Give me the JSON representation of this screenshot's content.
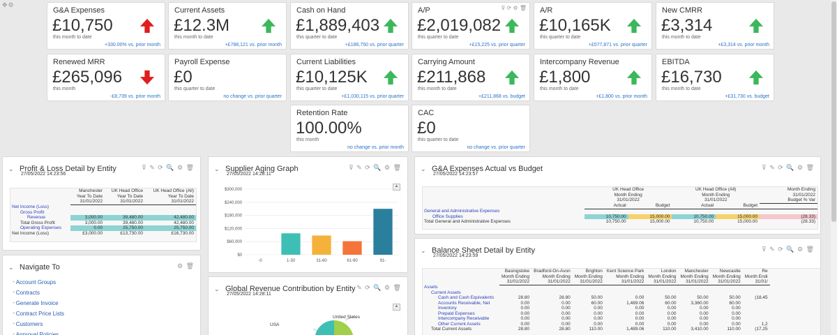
{
  "kpis": [
    {
      "title": "G&A Expenses",
      "value": "£10,750",
      "period": "this month to date",
      "change": "+330.00% vs. prior month",
      "trend": "up",
      "color": "#e01e1e"
    },
    {
      "title": "Current Assets",
      "value": "£12.3M",
      "period": "this month to date",
      "change": "+£788,121 vs. prior month",
      "trend": "up",
      "color": "#3bb85b"
    },
    {
      "title": "Cash on Hand",
      "value": "£1,889,403",
      "period": "this quarter to date",
      "change": "+£186,750 vs. prior quarter",
      "trend": "up",
      "color": "#3bb85b"
    },
    {
      "title": "A/P",
      "value": "£2,019,082",
      "period": "this quarter to date",
      "change": "+£15,225 vs. prior quarter",
      "trend": "up",
      "color": "#3bb85b",
      "actions": "⊽ ⟳ ⚙ 🗑"
    },
    {
      "title": "A/R",
      "value": "£10,165K",
      "period": "this quarter to date",
      "change": "+£577,871 vs. prior quarter",
      "trend": "up",
      "color": "#3bb85b"
    },
    {
      "title": "New CMRR",
      "value": "£3,314",
      "period": "this month to date",
      "change": "+£3,314 vs. prior month",
      "trend": "up",
      "color": "#3bb85b"
    },
    {
      "title": "Renewed MRR",
      "value": "£265,096",
      "period": "this month",
      "change": "-£8,739 vs. prior month",
      "trend": "down",
      "color": "#e01e1e"
    },
    {
      "title": "Payroll Expense",
      "value": "£0",
      "period": "this quarter to date",
      "change": "no change vs. prior quarter",
      "trend": "none",
      "color": ""
    },
    {
      "title": "Current Liabilities",
      "value": "£10,125K",
      "period": "this quarter to date",
      "change": "+£1,030,115 vs. prior quarter",
      "trend": "up",
      "color": "#3bb85b"
    },
    {
      "title": "Carrying Amount",
      "value": "£211,868",
      "period": "this month to date",
      "change": "+£211,868 vs. budget",
      "trend": "up",
      "color": "#3bb85b"
    },
    {
      "title": "Intercompany Revenue",
      "value": "£1,800",
      "period": "this month to date",
      "change": "+£1,800 vs. prior month",
      "trend": "up",
      "color": "#3bb85b"
    },
    {
      "title": "EBITDA",
      "value": "£16,730",
      "period": "this month to date",
      "change": "+£31,730 vs. budget",
      "trend": "up",
      "color": "#3bb85b"
    },
    {
      "title": "Retention Rate",
      "value": "100.00%",
      "period": "this month",
      "change": "no change vs. prior month",
      "trend": "none",
      "color": ""
    },
    {
      "title": "CAC",
      "value": "£0",
      "period": "this quarter to date",
      "change": "no change vs. prior quarter",
      "trend": "none",
      "color": ""
    }
  ],
  "pl": {
    "title": "Profit & Loss Detail by Entity",
    "timestamp": "27/05/2022 14:23:56",
    "actions": "⊽ ✎ ⟳ 🔍 ⚙ 🗑",
    "headers": [
      [
        "Manchester",
        "Year To Date",
        "31/01/2022"
      ],
      [
        "UK Head Office",
        "Year To Date",
        "31/01/2022"
      ],
      [
        "UK Head Office (All)",
        "Year To Date",
        "31/01/2022"
      ]
    ],
    "rows": [
      {
        "label": "Net Income (Loss)",
        "cells": [
          "",
          "",
          ""
        ]
      },
      {
        "label": "Gross Profit",
        "cells": [
          "",
          "",
          ""
        ]
      },
      {
        "label": "Revenue",
        "cells": [
          "3,000.00",
          "39,480.00",
          "42,480.00"
        ]
      },
      {
        "label": "Total Gross Profit",
        "cells": [
          "3,000.00",
          "39,480.00",
          "42,480.00"
        ]
      },
      {
        "label": "Operating Expenses",
        "cells": [
          "0.00",
          "25,750.00",
          "25,750.00"
        ]
      },
      {
        "label": "Net Income (Loss)",
        "cells": [
          "£3,000.00",
          "£13,730.00",
          "£16,730.00"
        ]
      }
    ]
  },
  "supplier": {
    "title": "Supplier Aging Graph",
    "timestamp": "27/05/2022 14:28:11",
    "actions": "⊽ ✎ ⟳ 🔍 ⚙ 🗑"
  },
  "chart_data": {
    "type": "bar",
    "categories": [
      "-0",
      "1-30",
      "31-60",
      "61-90",
      "91-"
    ],
    "values": [
      0,
      98000,
      88000,
      62000,
      210000
    ],
    "colors": [
      "#3ebfb6",
      "#3ebfb6",
      "#f4b23a",
      "#f4743a",
      "#2a7f9c"
    ],
    "ylim": [
      0,
      300000
    ],
    "yticks": [
      "$0",
      "$60,000",
      "$120,000",
      "$180,000",
      "$240,000",
      "$300,000"
    ],
    "title": "",
    "xlabel": "",
    "ylabel": ""
  },
  "gae": {
    "title": "G&A Expenses Actual vs Budget",
    "timestamp": "27/05/2022 14:23:57",
    "actions": "⊽ ✎ ⟳ 🔍 ⚙ 🗑",
    "group1": [
      "UK Head Office",
      "Month Ending",
      "31/01/2022"
    ],
    "group2": [
      "UK Head Office (All)",
      "Month Ending",
      "31/01/2022"
    ],
    "group3": [
      "Month Ending",
      "31/01/2022",
      "Budget % Var"
    ],
    "col_actual": "Actual",
    "col_budget": "Budget",
    "rows": [
      {
        "label": "General and Administrative Expenses",
        "cells": [
          "",
          "",
          "",
          "",
          ""
        ]
      },
      {
        "label": "Office Supplies",
        "cells": [
          "10,750.00",
          "15,000.00",
          "10,750.00",
          "15,000.00",
          "(28.33)"
        ]
      },
      {
        "label": "Total General and Administrative Expenses",
        "cells": [
          "10,750.00",
          "15,000.00",
          "10,750.00",
          "15,000.00",
          "(28.33)"
        ]
      }
    ]
  },
  "nav": {
    "title": "Navigate To",
    "actions": "⚙ 🗑",
    "items": [
      "Account Groups",
      "Contracts",
      "Generate Invoice",
      "Contract Price Lists",
      "Customers",
      "Approval Policies"
    ]
  },
  "global": {
    "title": "Global Revenue Contribution by Entity",
    "timestamp": "27/05/2022 14:28:11",
    "actions": "✎ ⟳ 🔍 ⚙ 🗑",
    "label_usa": "USA",
    "label_us": "United States"
  },
  "bs": {
    "title": "Balance Sheet Detail by Entity",
    "timestamp": "27/05/2022 14:23:59",
    "actions": "⊽ ✎ ⟳ 🔍 ⚙ 🗑",
    "headers": [
      [
        "Basingstoke",
        "Month Ending",
        "31/01/2022"
      ],
      [
        "Bradford-On-Avon",
        "Month Ending",
        "31/01/2022"
      ],
      [
        "Brighton",
        "Month Ending",
        "31/01/2022"
      ],
      [
        "Kent Science Park",
        "Month Ending",
        "31/01/2022"
      ],
      [
        "London",
        "Month Ending",
        "31/01/2022"
      ],
      [
        "Manchester",
        "Month Ending",
        "31/01/2022"
      ],
      [
        "Newcastle",
        "Month Ending",
        "31/01/2022"
      ],
      [
        "Re",
        "Month Endi",
        "31/01/"
      ]
    ],
    "rows": [
      {
        "label": "Assets",
        "cells": [
          "",
          "",
          "",
          "",
          "",
          "",
          "",
          ""
        ]
      },
      {
        "label": "Current Assets",
        "cells": [
          "",
          "",
          "",
          "",
          "",
          "",
          "",
          ""
        ]
      },
      {
        "label": "Cash and Cash Equivalents",
        "cells": [
          "28.80",
          "28.80",
          "50.00",
          "0.00",
          "50.00",
          "50.00",
          "50.00",
          "(18,45"
        ]
      },
      {
        "label": "Accounts Receivable, Net",
        "cells": [
          "0.00",
          "0.00",
          "60.00",
          "1,489.06",
          "60.00",
          "3,360.00",
          "60.00",
          ""
        ]
      },
      {
        "label": "Inventory",
        "cells": [
          "0.00",
          "0.00",
          "0.00",
          "0.00",
          "0.00",
          "0.00",
          "0.00",
          ""
        ]
      },
      {
        "label": "Prepaid Expenses",
        "cells": [
          "0.00",
          "0.00",
          "0.00",
          "0.00",
          "0.00",
          "0.00",
          "0.00",
          ""
        ]
      },
      {
        "label": "Intercompany Receivable",
        "cells": [
          "0.00",
          "0.00",
          "0.00",
          "0.00",
          "0.00",
          "0.00",
          "0.00",
          ""
        ]
      },
      {
        "label": "Other Current Assets",
        "cells": [
          "0.00",
          "0.00",
          "0.00",
          "0.00",
          "0.00",
          "0.00",
          "0.00",
          "1,2"
        ]
      },
      {
        "label": "Total Current Assets",
        "cells": [
          "28.80",
          "28.80",
          "110.00",
          "1,489.06",
          "110.00",
          "3,410.00",
          "110.00",
          "(17,25"
        ]
      }
    ]
  }
}
